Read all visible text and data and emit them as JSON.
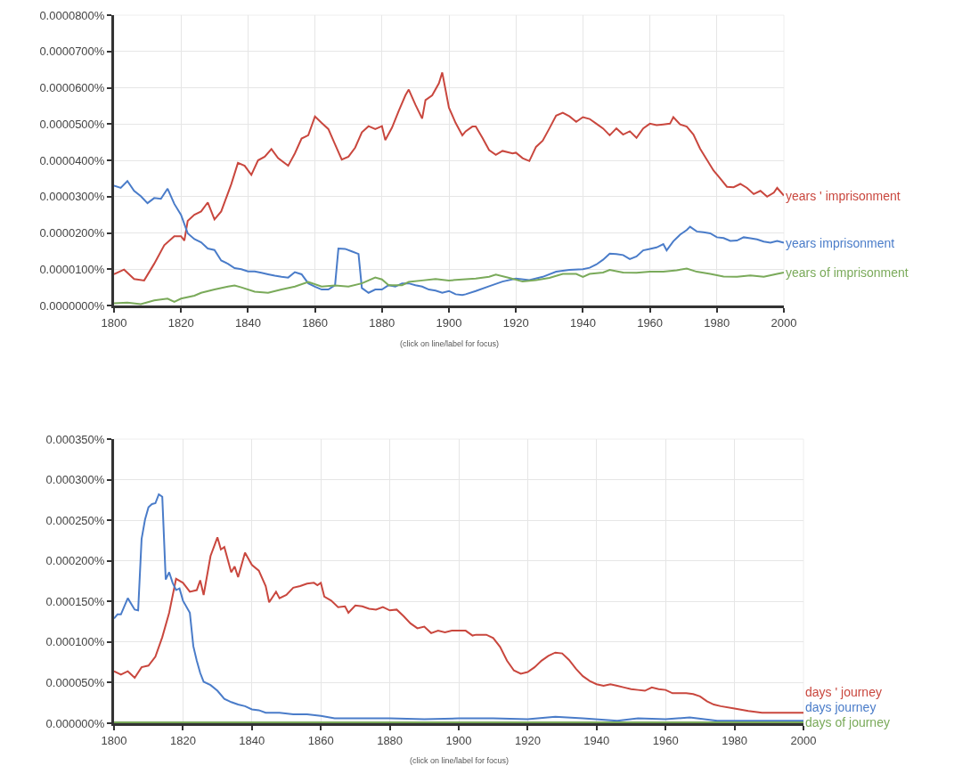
{
  "chart_data": [
    {
      "type": "line",
      "legend": false,
      "grid": true,
      "line_style": "solid",
      "marker": "none",
      "annotations": [
        "(click on line/label for focus)"
      ],
      "xlim": [
        1800,
        2000
      ],
      "xticks": [
        1800,
        1820,
        1840,
        1860,
        1880,
        1900,
        1920,
        1940,
        1960,
        1980,
        2000
      ],
      "ylim": [
        0,
        8e-05
      ],
      "yticks": [
        {
          "value": 0,
          "label": "0.0000000%"
        },
        {
          "value": 1e-05,
          "label": "0.0000100%"
        },
        {
          "value": 2e-05,
          "label": "0.0000200%"
        },
        {
          "value": 3e-05,
          "label": "0.0000300%"
        },
        {
          "value": 4e-05,
          "label": "0.0000400%"
        },
        {
          "value": 5e-05,
          "label": "0.0000500%"
        },
        {
          "value": 6e-05,
          "label": "0.0000600%"
        },
        {
          "value": 7e-05,
          "label": "0.0000700%"
        },
        {
          "value": 8e-05,
          "label": "0.0000800%"
        }
      ],
      "series": [
        {
          "name": "years ' imprisonment",
          "color": "#c9473e",
          "x": [
            1800,
            1803,
            1806,
            1809,
            1812,
            1815,
            1818,
            1820,
            1821,
            1822,
            1824,
            1826,
            1828,
            1830,
            1832,
            1835,
            1837,
            1839,
            1841,
            1843,
            1845,
            1847,
            1849,
            1852,
            1854,
            1856,
            1858,
            1860,
            1862,
            1864,
            1866,
            1868,
            1870,
            1872,
            1874,
            1876,
            1878,
            1880,
            1881,
            1883,
            1885,
            1887,
            1888,
            1890,
            1892,
            1893,
            1895,
            1897,
            1898,
            1900,
            1902,
            1904,
            1905,
            1907,
            1908,
            1910,
            1912,
            1914,
            1916,
            1919,
            1920,
            1922,
            1924,
            1926,
            1928,
            1930,
            1932,
            1934,
            1936,
            1938,
            1940,
            1942,
            1944,
            1946,
            1948,
            1950,
            1952,
            1954,
            1956,
            1958,
            1960,
            1962,
            1964,
            1966,
            1967,
            1969,
            1971,
            1973,
            1975,
            1977,
            1979,
            1981,
            1983,
            1985,
            1987,
            1989,
            1991,
            1993,
            1995,
            1997,
            1998,
            2000
          ],
          "values": [
            8.6e-06,
            9.9e-06,
            7.3e-06,
            6.9e-06,
            1.15e-05,
            1.66e-05,
            1.91e-05,
            1.91e-05,
            1.79e-05,
            2.33e-05,
            2.5e-05,
            2.59e-05,
            2.84e-05,
            2.37e-05,
            2.59e-05,
            3.34e-05,
            3.93e-05,
            3.85e-05,
            3.6e-05,
            4e-05,
            4.1e-05,
            4.31e-05,
            4.06e-05,
            3.85e-05,
            4.19e-05,
            4.6e-05,
            4.69e-05,
            5.21e-05,
            5.03e-05,
            4.86e-05,
            4.44e-05,
            4.02e-05,
            4.1e-05,
            4.35e-05,
            4.77e-05,
            4.94e-05,
            4.86e-05,
            4.94e-05,
            4.56e-05,
            4.9e-05,
            5.36e-05,
            5.79e-05,
            5.95e-05,
            5.53e-05,
            5.15e-05,
            5.66e-05,
            5.79e-05,
            6.12e-05,
            6.42e-05,
            5.45e-05,
            5.03e-05,
            4.69e-05,
            4.8e-05,
            4.93e-05,
            4.93e-05,
            4.62e-05,
            4.28e-05,
            4.15e-05,
            4.26e-05,
            4.19e-05,
            4.21e-05,
            4.06e-05,
            3.98e-05,
            4.37e-05,
            4.54e-05,
            4.88e-05,
            5.23e-05,
            5.31e-05,
            5.21e-05,
            5.06e-05,
            5.19e-05,
            5.14e-05,
            5.01e-05,
            4.88e-05,
            4.69e-05,
            4.88e-05,
            4.71e-05,
            4.8e-05,
            4.62e-05,
            4.88e-05,
            5.01e-05,
            4.97e-05,
            4.99e-05,
            5.01e-05,
            5.19e-05,
            4.99e-05,
            4.93e-05,
            4.71e-05,
            4.32e-05,
            4.02e-05,
            3.72e-05,
            3.5e-05,
            3.27e-05,
            3.26e-05,
            3.35e-05,
            3.24e-05,
            3.07e-05,
            3.16e-05,
            3e-05,
            3.11e-05,
            3.24e-05,
            3.03e-05
          ]
        },
        {
          "name": "years imprisonment",
          "color": "#4a7cc9",
          "x": [
            1800,
            1802,
            1804,
            1806,
            1808,
            1810,
            1812,
            1814,
            1816,
            1818,
            1820,
            1822,
            1824,
            1826,
            1828,
            1830,
            1832,
            1834,
            1836,
            1838,
            1840,
            1842,
            1844,
            1846,
            1848,
            1850,
            1852,
            1854,
            1856,
            1858,
            1860,
            1862,
            1864,
            1866,
            1867,
            1869,
            1871,
            1873,
            1874,
            1876,
            1878,
            1880,
            1882,
            1884,
            1886,
            1888,
            1890,
            1892,
            1894,
            1896,
            1898,
            1900,
            1902,
            1904,
            1905,
            1908,
            1912,
            1916,
            1920,
            1924,
            1928,
            1932,
            1936,
            1940,
            1942,
            1944,
            1946,
            1948,
            1950,
            1952,
            1954,
            1956,
            1958,
            1960,
            1962,
            1964,
            1965,
            1967,
            1969,
            1971,
            1972,
            1974,
            1976,
            1978,
            1980,
            1982,
            1984,
            1986,
            1988,
            1990,
            1992,
            1994,
            1996,
            1998,
            2000
          ],
          "values": [
            3.3e-05,
            3.24e-05,
            3.43e-05,
            3.16e-05,
            3.01e-05,
            2.82e-05,
            2.96e-05,
            2.94e-05,
            3.22e-05,
            2.8e-05,
            2.5e-05,
            1.99e-05,
            1.83e-05,
            1.74e-05,
            1.57e-05,
            1.53e-05,
            1.24e-05,
            1.15e-05,
            1.03e-05,
            1e-05,
            9.4e-06,
            9.4e-06,
            9e-06,
            8.6e-06,
            8.2e-06,
            7.9e-06,
            7.7e-06,
            9.2e-06,
            8.6e-06,
            6.1e-06,
            5.2e-06,
            4.4e-06,
            4.4e-06,
            5.6e-06,
            1.57e-05,
            1.56e-05,
            1.49e-05,
            1.42e-05,
            4.8e-06,
            3.5e-06,
            4.4e-06,
            4.4e-06,
            5.6e-06,
            5.2e-06,
            6.1e-06,
            6.1e-06,
            5.6e-06,
            5.2e-06,
            4.4e-06,
            4.1e-06,
            3.5e-06,
            4e-06,
            3.1e-06,
            2.9e-06,
            3.1e-06,
            4e-06,
            5.3e-06,
            6.6e-06,
            7.4e-06,
            7e-06,
            7.9e-06,
            9.3e-06,
            9.8e-06,
            1e-05,
            1.04e-05,
            1.13e-05,
            1.26e-05,
            1.43e-05,
            1.42e-05,
            1.39e-05,
            1.28e-05,
            1.35e-05,
            1.52e-05,
            1.56e-05,
            1.6e-05,
            1.69e-05,
            1.52e-05,
            1.77e-05,
            1.95e-05,
            2.08e-05,
            2.17e-05,
            2.04e-05,
            2.02e-05,
            1.99e-05,
            1.88e-05,
            1.86e-05,
            1.78e-05,
            1.79e-05,
            1.88e-05,
            1.85e-05,
            1.82e-05,
            1.76e-05,
            1.73e-05,
            1.78e-05,
            1.73e-05
          ]
        },
        {
          "name": "years of imprisonment",
          "color": "#7aaa5a",
          "x": [
            1800,
            1804,
            1808,
            1812,
            1816,
            1818,
            1820,
            1824,
            1826,
            1830,
            1834,
            1836,
            1838,
            1842,
            1846,
            1850,
            1854,
            1858,
            1862,
            1866,
            1870,
            1874,
            1878,
            1880,
            1882,
            1886,
            1888,
            1892,
            1896,
            1900,
            1904,
            1908,
            1912,
            1914,
            1918,
            1922,
            1926,
            1930,
            1934,
            1938,
            1940,
            1942,
            1946,
            1948,
            1952,
            1956,
            1960,
            1964,
            1968,
            1971,
            1974,
            1978,
            1982,
            1986,
            1990,
            1994,
            1998,
            2000
          ],
          "values": [
            6e-07,
            8e-07,
            4e-07,
            1.4e-06,
            1.9e-06,
            1e-06,
            1.9e-06,
            2.7e-06,
            3.5e-06,
            4.4e-06,
            5.2e-06,
            5.5e-06,
            5e-06,
            3.8e-06,
            3.5e-06,
            4.4e-06,
            5.2e-06,
            6.5e-06,
            5.2e-06,
            5.5e-06,
            5.2e-06,
            6.1e-06,
            7.7e-06,
            7.2e-06,
            5.6e-06,
            5.6e-06,
            6.5e-06,
            6.9e-06,
            7.3e-06,
            6.9e-06,
            7.2e-06,
            7.4e-06,
            7.9e-06,
            8.5e-06,
            7.6e-06,
            6.6e-06,
            7e-06,
            7.6e-06,
            8.7e-06,
            8.7e-06,
            7.9e-06,
            8.7e-06,
            9.1e-06,
            9.8e-06,
            9.1e-06,
            9e-06,
            9.3e-06,
            9.3e-06,
            9.7e-06,
            1.02e-05,
            9.3e-06,
            8.7e-06,
            8e-06,
            7.9e-06,
            8.3e-06,
            7.9e-06,
            8.7e-06,
            9.1e-06
          ]
        }
      ]
    },
    {
      "type": "line",
      "legend": false,
      "grid": true,
      "line_style": "solid",
      "marker": "none",
      "annotations": [
        "(click on line/label for focus)"
      ],
      "xlim": [
        1800,
        2000
      ],
      "xticks": [
        1800,
        1820,
        1840,
        1860,
        1880,
        1900,
        1920,
        1940,
        1960,
        1980,
        2000
      ],
      "ylim": [
        0,
        0.00035
      ],
      "yticks": [
        {
          "value": 0,
          "label": "0.000000%"
        },
        {
          "value": 5e-05,
          "label": "0.000050%"
        },
        {
          "value": 0.0001,
          "label": "0.000100%"
        },
        {
          "value": 0.00015,
          "label": "0.000150%"
        },
        {
          "value": 0.0002,
          "label": "0.000200%"
        },
        {
          "value": 0.00025,
          "label": "0.000250%"
        },
        {
          "value": 0.0003,
          "label": "0.000300%"
        },
        {
          "value": 0.00035,
          "label": "0.000350%"
        }
      ],
      "series": [
        {
          "name": "days ' journey",
          "color": "#c9473e",
          "x": [
            1800,
            1802,
            1804,
            1806,
            1808,
            1810,
            1812,
            1814,
            1816,
            1818,
            1820,
            1822,
            1824,
            1825,
            1826,
            1828,
            1830,
            1831,
            1832,
            1834,
            1835,
            1836,
            1838,
            1840,
            1842,
            1844,
            1845,
            1847,
            1848,
            1850,
            1852,
            1854,
            1856,
            1858,
            1859,
            1860,
            1861,
            1863,
            1865,
            1867,
            1868,
            1870,
            1872,
            1874,
            1876,
            1878,
            1880,
            1882,
            1884,
            1886,
            1888,
            1890,
            1892,
            1894,
            1896,
            1898,
            1900,
            1902,
            1904,
            1905,
            1908,
            1910,
            1912,
            1914,
            1916,
            1918,
            1920,
            1922,
            1924,
            1926,
            1928,
            1930,
            1932,
            1934,
            1936,
            1938,
            1940,
            1942,
            1944,
            1946,
            1948,
            1950,
            1952,
            1954,
            1956,
            1958,
            1960,
            1962,
            1964,
            1966,
            1968,
            1970,
            1972,
            1974,
            1976,
            1980,
            1984,
            1988,
            1992,
            1996,
            2000
          ],
          "values": [
            6.4e-05,
            6e-05,
            6.4e-05,
            5.6e-05,
            6.9e-05,
            7.1e-05,
            8.2e-05,
            0.000106,
            0.000136,
            0.000178,
            0.000173,
            0.000162,
            0.000164,
            0.000176,
            0.000158,
            0.000206,
            0.000229,
            0.000214,
            0.000217,
            0.000186,
            0.000193,
            0.00018,
            0.00021,
            0.000195,
            0.000188,
            0.000169,
            0.000149,
            0.000162,
            0.000154,
            0.000158,
            0.000167,
            0.000169,
            0.000172,
            0.000173,
            0.00017,
            0.000173,
            0.000156,
            0.000151,
            0.000143,
            0.000144,
            0.000136,
            0.000145,
            0.000144,
            0.000141,
            0.00014,
            0.000143,
            0.000139,
            0.00014,
            0.000132,
            0.000123,
            0.000117,
            0.000119,
            0.000111,
            0.000114,
            0.000112,
            0.000114,
            0.000114,
            0.000114,
            0.000108,
            0.000109,
            0.000109,
            0.000105,
            9.4e-05,
            7.7e-05,
            6.5e-05,
            6.1e-05,
            6.3e-05,
            6.9e-05,
            7.7e-05,
            8.3e-05,
            8.7e-05,
            8.6e-05,
            7.8e-05,
            6.7e-05,
            5.8e-05,
            5.2e-05,
            4.8e-05,
            4.6e-05,
            4.8e-05,
            4.6e-05,
            4.4e-05,
            4.2e-05,
            4.1e-05,
            4e-05,
            4.4e-05,
            4.2e-05,
            4.1e-05,
            3.7e-05,
            3.7e-05,
            3.7e-05,
            3.6e-05,
            3.3e-05,
            2.7e-05,
            2.3e-05,
            2.1e-05,
            1.8e-05,
            1.5e-05,
            1.3e-05,
            1.3e-05,
            1.3e-05,
            1.3e-05
          ]
        },
        {
          "name": "days journey",
          "color": "#4a7cc9",
          "x": [
            1800,
            1801,
            1802,
            1804,
            1806,
            1807,
            1808,
            1809,
            1810,
            1811,
            1812,
            1813,
            1814,
            1815,
            1816,
            1817,
            1818,
            1819,
            1820,
            1822,
            1823,
            1824,
            1825,
            1826,
            1828,
            1830,
            1832,
            1834,
            1836,
            1838,
            1840,
            1842,
            1844,
            1848,
            1852,
            1856,
            1860,
            1864,
            1870,
            1880,
            1890,
            1900,
            1910,
            1920,
            1928,
            1936,
            1946,
            1952,
            1960,
            1967,
            1975,
            1985,
            2000
          ],
          "values": [
            0.000129,
            0.000134,
            0.000134,
            0.000154,
            0.00014,
            0.000139,
            0.000227,
            0.000251,
            0.000266,
            0.00027,
            0.000271,
            0.000282,
            0.000279,
            0.000177,
            0.000186,
            0.000173,
            0.000164,
            0.000166,
            0.000151,
            0.000136,
            9.5e-05,
            7.7e-05,
            6.2e-05,
            5.1e-05,
            4.7e-05,
            4e-05,
            3e-05,
            2.6e-05,
            2.3e-05,
            2.1e-05,
            1.7e-05,
            1.6e-05,
            1.3e-05,
            1.3e-05,
            1.1e-05,
            1.1e-05,
            9e-06,
            6e-06,
            6e-06,
            6e-06,
            5e-06,
            6e-06,
            6e-06,
            5e-06,
            8e-06,
            6e-06,
            3e-06,
            6e-06,
            5e-06,
            7e-06,
            3e-06,
            3e-06,
            3e-06
          ]
        },
        {
          "name": "days of journey",
          "color": "#7aaa5a",
          "x": [
            1800,
            1850,
            1900,
            1950,
            2000
          ],
          "values": [
            1e-06,
            1e-06,
            1e-06,
            1e-06,
            1e-06
          ]
        }
      ]
    }
  ]
}
